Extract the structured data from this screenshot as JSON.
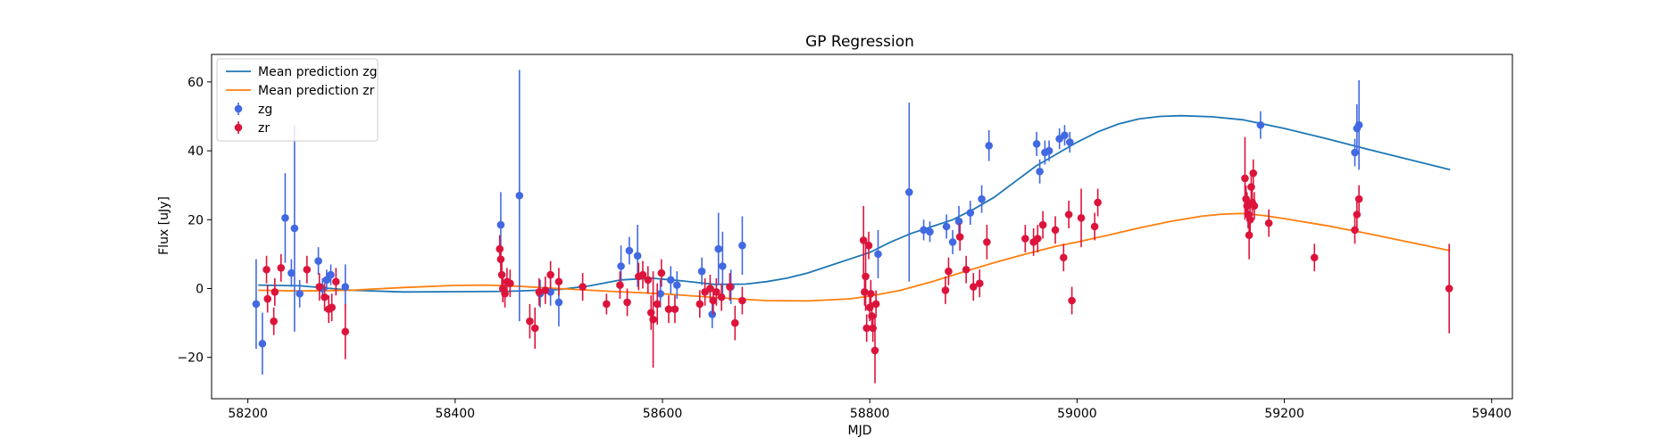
{
  "chart_data": {
    "type": "scatter",
    "title": "GP Regression",
    "xlabel": "MJD",
    "ylabel": "Flux [uJy]",
    "xlim": [
      58165,
      59420
    ],
    "ylim": [
      -32,
      68
    ],
    "xticks": [
      58200,
      58400,
      58600,
      58800,
      59000,
      59200,
      59400
    ],
    "yticks": [
      -20,
      0,
      20,
      40,
      60
    ],
    "grid": false,
    "legend_position": "upper-left",
    "series": [
      {
        "name": "Mean prediction zg",
        "kind": "line",
        "color": "#1f77b4",
        "x": [
          58210,
          58250,
          58300,
          58350,
          58400,
          58450,
          58500,
          58530,
          58560,
          58590,
          58620,
          58650,
          58680,
          58700,
          58720,
          58740,
          58760,
          58780,
          58800,
          58820,
          58840,
          58860,
          58880,
          58900,
          58920,
          58940,
          58960,
          58980,
          59000,
          59020,
          59040,
          59060,
          59080,
          59100,
          59130,
          59160,
          59200,
          59240,
          59280,
          59320,
          59360
        ],
        "y": [
          1.0,
          0.8,
          -0.5,
          -1.0,
          -0.9,
          -0.8,
          -0.3,
          0.8,
          2.5,
          3.0,
          2.2,
          1.2,
          1.3,
          2.0,
          3.0,
          4.5,
          6.5,
          8.5,
          10.5,
          13.5,
          16.0,
          18.0,
          20.0,
          23.0,
          26.5,
          31.0,
          35.5,
          39.0,
          42.5,
          45.5,
          47.8,
          49.3,
          50.0,
          50.2,
          49.9,
          49.0,
          46.5,
          43.6,
          40.5,
          37.5,
          34.5
        ]
      },
      {
        "name": "Mean prediction zr",
        "kind": "line",
        "color": "#ff7f0e",
        "x": [
          58210,
          58250,
          58300,
          58350,
          58400,
          58430,
          58460,
          58500,
          58550,
          58600,
          58650,
          58700,
          58740,
          58780,
          58800,
          58830,
          58860,
          58890,
          58920,
          58950,
          58980,
          59000,
          59030,
          59060,
          59090,
          59120,
          59140,
          59160,
          59180,
          59200,
          59240,
          59280,
          59320,
          59360
        ],
        "y": [
          -0.5,
          -0.7,
          -0.5,
          0.3,
          0.9,
          1.0,
          0.7,
          0.0,
          -0.8,
          -1.5,
          -2.6,
          -3.5,
          -3.6,
          -3.0,
          -2.2,
          -0.5,
          2.0,
          4.8,
          7.5,
          10.0,
          12.3,
          13.5,
          15.5,
          17.6,
          19.5,
          21.0,
          21.6,
          21.8,
          21.2,
          20.3,
          18.3,
          16.0,
          13.5,
          11.0
        ]
      },
      {
        "name": "zg",
        "kind": "errorbar",
        "color": "#4169e1",
        "points": [
          {
            "x": 58208,
            "y": -4.5,
            "err": 13
          },
          {
            "x": 58214,
            "y": -16,
            "err": 9
          },
          {
            "x": 58236,
            "y": 20.5,
            "err": 13
          },
          {
            "x": 58242,
            "y": 4.5,
            "err": 4
          },
          {
            "x": 58245,
            "y": 17.5,
            "err": 30
          },
          {
            "x": 58250,
            "y": -1.5,
            "err": 4
          },
          {
            "x": 58268,
            "y": 8,
            "err": 4
          },
          {
            "x": 58272,
            "y": 0,
            "err": 3
          },
          {
            "x": 58276,
            "y": 2.5,
            "err": 3
          },
          {
            "x": 58280,
            "y": 4,
            "err": 3
          },
          {
            "x": 58294,
            "y": 0.5,
            "err": 6.5
          },
          {
            "x": 58444,
            "y": 18.5,
            "err": 9.5
          },
          {
            "x": 58462,
            "y": 27,
            "err": 36.5
          },
          {
            "x": 58482,
            "y": -1.5,
            "err": 4
          },
          {
            "x": 58492,
            "y": -1,
            "err": 4
          },
          {
            "x": 58500,
            "y": -4,
            "err": 7
          },
          {
            "x": 58560,
            "y": 6.5,
            "err": 6
          },
          {
            "x": 58568,
            "y": 11,
            "err": 4
          },
          {
            "x": 58576,
            "y": 9.5,
            "err": 9
          },
          {
            "x": 58598,
            "y": -1.5,
            "err": 4
          },
          {
            "x": 58608,
            "y": 2.5,
            "err": 4
          },
          {
            "x": 58614,
            "y": 1,
            "err": 4
          },
          {
            "x": 58638,
            "y": 5,
            "err": 4
          },
          {
            "x": 58648,
            "y": -7.5,
            "err": 4
          },
          {
            "x": 58654,
            "y": 11.5,
            "err": 10.5
          },
          {
            "x": 58658,
            "y": 6.5,
            "err": 10
          },
          {
            "x": 58666,
            "y": 0.5,
            "err": 5
          },
          {
            "x": 58677,
            "y": 12.5,
            "err": 8.5
          },
          {
            "x": 58808,
            "y": 10,
            "err": 7
          },
          {
            "x": 58838,
            "y": 28,
            "err": 26
          },
          {
            "x": 58852,
            "y": 17,
            "err": 3
          },
          {
            "x": 58858,
            "y": 16.5,
            "err": 3
          },
          {
            "x": 58874,
            "y": 18,
            "err": 3.5
          },
          {
            "x": 58880,
            "y": 13.5,
            "err": 3.5
          },
          {
            "x": 58886,
            "y": 19.5,
            "err": 4.5
          },
          {
            "x": 58897,
            "y": 22,
            "err": 3.5
          },
          {
            "x": 58908,
            "y": 26,
            "err": 4
          },
          {
            "x": 58915,
            "y": 41.5,
            "err": 4.5
          },
          {
            "x": 58961,
            "y": 42,
            "err": 3.5
          },
          {
            "x": 58964,
            "y": 34,
            "err": 3.5
          },
          {
            "x": 58969,
            "y": 39.5,
            "err": 3.5
          },
          {
            "x": 58973,
            "y": 40,
            "err": 3
          },
          {
            "x": 58983,
            "y": 43.5,
            "err": 3
          },
          {
            "x": 58988,
            "y": 44.5,
            "err": 3
          },
          {
            "x": 58993,
            "y": 42.5,
            "err": 3
          },
          {
            "x": 59177,
            "y": 47.5,
            "err": 4
          },
          {
            "x": 59268,
            "y": 39.5,
            "err": 4
          },
          {
            "x": 59270,
            "y": 46.5,
            "err": 7
          },
          {
            "x": 59272,
            "y": 47.5,
            "err": 13
          }
        ]
      },
      {
        "name": "zr",
        "kind": "errorbar",
        "color": "#dc143c",
        "points": [
          {
            "x": 58218,
            "y": 5.5,
            "err": 4
          },
          {
            "x": 58219,
            "y": -3,
            "err": 4
          },
          {
            "x": 58225,
            "y": -9.5,
            "err": 4
          },
          {
            "x": 58226,
            "y": -1,
            "err": 4
          },
          {
            "x": 58232,
            "y": 6,
            "err": 4
          },
          {
            "x": 58257,
            "y": 5.5,
            "err": 4
          },
          {
            "x": 58269,
            "y": 0.5,
            "err": 4
          },
          {
            "x": 58274,
            "y": -2.5,
            "err": 4
          },
          {
            "x": 58278,
            "y": -6,
            "err": 4
          },
          {
            "x": 58281,
            "y": -5.5,
            "err": 4
          },
          {
            "x": 58285,
            "y": 2,
            "err": 4
          },
          {
            "x": 58294,
            "y": -12.5,
            "err": 8
          },
          {
            "x": 58443,
            "y": 11.5,
            "err": 4
          },
          {
            "x": 58444,
            "y": 8.5,
            "err": 4
          },
          {
            "x": 58445,
            "y": 4,
            "err": 4
          },
          {
            "x": 58446,
            "y": 0,
            "err": 4
          },
          {
            "x": 58448,
            "y": -1.5,
            "err": 4
          },
          {
            "x": 58450,
            "y": 2,
            "err": 4
          },
          {
            "x": 58453,
            "y": 1.5,
            "err": 4
          },
          {
            "x": 58472,
            "y": -9.5,
            "err": 5
          },
          {
            "x": 58477,
            "y": -11.5,
            "err": 6
          },
          {
            "x": 58481,
            "y": -1,
            "err": 4
          },
          {
            "x": 58487,
            "y": -0.5,
            "err": 4
          },
          {
            "x": 58492,
            "y": 4,
            "err": 4
          },
          {
            "x": 58500,
            "y": 2,
            "err": 4
          },
          {
            "x": 58523,
            "y": 0.5,
            "err": 4
          },
          {
            "x": 58546,
            "y": -4.5,
            "err": 3
          },
          {
            "x": 58559,
            "y": 1,
            "err": 4
          },
          {
            "x": 58566,
            "y": -4,
            "err": 4
          },
          {
            "x": 58577,
            "y": 3.5,
            "err": 4
          },
          {
            "x": 58581,
            "y": 4,
            "err": 4
          },
          {
            "x": 58586,
            "y": 2.5,
            "err": 4
          },
          {
            "x": 58589,
            "y": -7,
            "err": 5
          },
          {
            "x": 58591,
            "y": -9,
            "err": 14
          },
          {
            "x": 58595,
            "y": -4.5,
            "err": 6
          },
          {
            "x": 58599,
            "y": 4.5,
            "err": 4
          },
          {
            "x": 58606,
            "y": -6,
            "err": 4
          },
          {
            "x": 58612,
            "y": -6,
            "err": 4
          },
          {
            "x": 58636,
            "y": -4.5,
            "err": 4
          },
          {
            "x": 58641,
            "y": -1,
            "err": 4
          },
          {
            "x": 58646,
            "y": 0,
            "err": 4
          },
          {
            "x": 58649,
            "y": -3.5,
            "err": 4
          },
          {
            "x": 58652,
            "y": -1,
            "err": 4
          },
          {
            "x": 58657,
            "y": -2.5,
            "err": 4
          },
          {
            "x": 58665,
            "y": 0.5,
            "err": 4
          },
          {
            "x": 58670,
            "y": -10,
            "err": 5
          },
          {
            "x": 58677,
            "y": -3.5,
            "err": 4
          },
          {
            "x": 58794,
            "y": 14,
            "err": 10
          },
          {
            "x": 58795,
            "y": -1,
            "err": 4
          },
          {
            "x": 58796,
            "y": 3.5,
            "err": 10
          },
          {
            "x": 58797,
            "y": -11.5,
            "err": 4
          },
          {
            "x": 58799,
            "y": 12.5,
            "err": 4
          },
          {
            "x": 58800,
            "y": -5.5,
            "err": 4
          },
          {
            "x": 58801,
            "y": -1.5,
            "err": 4
          },
          {
            "x": 58802,
            "y": -8,
            "err": 4
          },
          {
            "x": 58803,
            "y": -11.5,
            "err": 4
          },
          {
            "x": 58805,
            "y": -18,
            "err": 9.5
          },
          {
            "x": 58806,
            "y": -4.5,
            "err": 4
          },
          {
            "x": 58873,
            "y": -0.5,
            "err": 4
          },
          {
            "x": 58876,
            "y": 5,
            "err": 4
          },
          {
            "x": 58887,
            "y": 15,
            "err": 4
          },
          {
            "x": 58893,
            "y": 5.5,
            "err": 4
          },
          {
            "x": 58900,
            "y": 0.5,
            "err": 4
          },
          {
            "x": 58906,
            "y": 1.5,
            "err": 4
          },
          {
            "x": 58913,
            "y": 13.5,
            "err": 5
          },
          {
            "x": 58950,
            "y": 14.5,
            "err": 4
          },
          {
            "x": 58958,
            "y": 13.5,
            "err": 4
          },
          {
            "x": 58962,
            "y": 14.5,
            "err": 4
          },
          {
            "x": 58967,
            "y": 18.5,
            "err": 4
          },
          {
            "x": 58979,
            "y": 17,
            "err": 4
          },
          {
            "x": 58987,
            "y": 9,
            "err": 4
          },
          {
            "x": 58992,
            "y": 21.5,
            "err": 4
          },
          {
            "x": 58995,
            "y": -3.5,
            "err": 4
          },
          {
            "x": 59004,
            "y": 20.5,
            "err": 8.5
          },
          {
            "x": 59017,
            "y": 18,
            "err": 4
          },
          {
            "x": 59020,
            "y": 25,
            "err": 4
          },
          {
            "x": 59162,
            "y": 32,
            "err": 12
          },
          {
            "x": 59163,
            "y": 26,
            "err": 4
          },
          {
            "x": 59164,
            "y": 24,
            "err": 4
          },
          {
            "x": 59165,
            "y": 21.5,
            "err": 4
          },
          {
            "x": 59166,
            "y": 15.5,
            "err": 7
          },
          {
            "x": 59167,
            "y": 20,
            "err": 4
          },
          {
            "x": 59168,
            "y": 29.5,
            "err": 4
          },
          {
            "x": 59169,
            "y": 25,
            "err": 4
          },
          {
            "x": 59170,
            "y": 33.5,
            "err": 4
          },
          {
            "x": 59171,
            "y": 24,
            "err": 4
          },
          {
            "x": 59185,
            "y": 19,
            "err": 4
          },
          {
            "x": 59229,
            "y": 9,
            "err": 4
          },
          {
            "x": 59268,
            "y": 17,
            "err": 4
          },
          {
            "x": 59270,
            "y": 21.5,
            "err": 4
          },
          {
            "x": 59272,
            "y": 26,
            "err": 4
          },
          {
            "x": 59359,
            "y": 0,
            "err": 13
          }
        ]
      }
    ]
  }
}
